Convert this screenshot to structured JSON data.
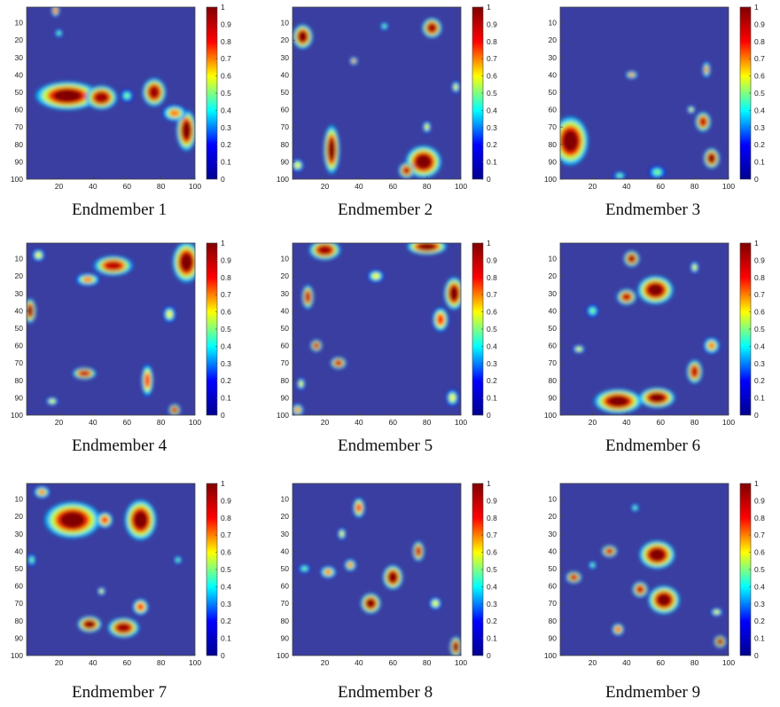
{
  "colormap": {
    "name": "jet",
    "stops": [
      "#00008f",
      "#0000ff",
      "#00ffff",
      "#ffff00",
      "#ff0000",
      "#800000"
    ],
    "background": "#3a3ea0"
  },
  "chart_data": [
    {
      "type": "heatmap",
      "caption": "Endmember 1",
      "xticks": [
        "20",
        "40",
        "60",
        "80",
        "100"
      ],
      "yticks": [
        "10",
        "20",
        "30",
        "40",
        "50",
        "60",
        "70",
        "80",
        "90",
        "100"
      ],
      "xlim": [
        1,
        100
      ],
      "ylim": [
        1,
        100
      ],
      "colorbar_ticks": [
        "0",
        "0.1",
        "0.2",
        "0.3",
        "0.4",
        "0.5",
        "0.6",
        "0.7",
        "0.8",
        "0.9",
        "1"
      ],
      "clim": [
        0,
        1
      ],
      "hotspots": [
        {
          "x": 25,
          "y": 52,
          "rx": 16,
          "ry": 7,
          "v": 1.0
        },
        {
          "x": 45,
          "y": 53,
          "rx": 8,
          "ry": 6,
          "v": 0.95
        },
        {
          "x": 76,
          "y": 50,
          "rx": 6,
          "ry": 7,
          "v": 0.95
        },
        {
          "x": 95,
          "y": 72,
          "rx": 5,
          "ry": 10,
          "v": 1.0
        },
        {
          "x": 88,
          "y": 62,
          "rx": 6,
          "ry": 4,
          "v": 0.7
        },
        {
          "x": 18,
          "y": 3,
          "rx": 2,
          "ry": 3,
          "v": 0.8
        },
        {
          "x": 20,
          "y": 16,
          "rx": 2,
          "ry": 2,
          "v": 0.5
        },
        {
          "x": 60,
          "y": 52,
          "rx": 3,
          "ry": 3,
          "v": 0.5
        }
      ]
    },
    {
      "type": "heatmap",
      "caption": "Endmember 2",
      "xticks": [
        "20",
        "40",
        "60",
        "80",
        "100"
      ],
      "yticks": [
        "10",
        "20",
        "30",
        "40",
        "50",
        "60",
        "70",
        "80",
        "90",
        "100"
      ],
      "xlim": [
        1,
        100
      ],
      "ylim": [
        1,
        100
      ],
      "colorbar_ticks": [
        "0",
        "0.1",
        "0.2",
        "0.3",
        "0.4",
        "0.5",
        "0.6",
        "0.7",
        "0.8",
        "0.9",
        "1"
      ],
      "clim": [
        0,
        1
      ],
      "hotspots": [
        {
          "x": 7,
          "y": 18,
          "rx": 5,
          "ry": 6,
          "v": 1.0
        },
        {
          "x": 83,
          "y": 13,
          "rx": 5,
          "ry": 5,
          "v": 0.95
        },
        {
          "x": 24,
          "y": 83,
          "rx": 4,
          "ry": 12,
          "v": 1.0
        },
        {
          "x": 78,
          "y": 90,
          "rx": 9,
          "ry": 8,
          "v": 1.0
        },
        {
          "x": 68,
          "y": 95,
          "rx": 4,
          "ry": 4,
          "v": 0.9
        },
        {
          "x": 37,
          "y": 32,
          "rx": 2,
          "ry": 2,
          "v": 0.7
        },
        {
          "x": 97,
          "y": 47,
          "rx": 2,
          "ry": 3,
          "v": 0.6
        },
        {
          "x": 55,
          "y": 12,
          "rx": 2,
          "ry": 2,
          "v": 0.5
        },
        {
          "x": 4,
          "y": 92,
          "rx": 3,
          "ry": 3,
          "v": 0.6
        },
        {
          "x": 80,
          "y": 70,
          "rx": 2,
          "ry": 3,
          "v": 0.6
        }
      ]
    },
    {
      "type": "heatmap",
      "caption": "Endmember 3",
      "xticks": [
        "20",
        "40",
        "60",
        "80",
        "100"
      ],
      "yticks": [
        "10",
        "20",
        "30",
        "40",
        "50",
        "60",
        "70",
        "80",
        "90",
        "100"
      ],
      "xlim": [
        1,
        100
      ],
      "ylim": [
        1,
        100
      ],
      "colorbar_ticks": [
        "0",
        "0.1",
        "0.2",
        "0.3",
        "0.4",
        "0.5",
        "0.6",
        "0.7",
        "0.8",
        "0.9",
        "1"
      ],
      "clim": [
        0,
        1
      ],
      "hotspots": [
        {
          "x": 7,
          "y": 78,
          "rx": 9,
          "ry": 12,
          "v": 1.0
        },
        {
          "x": 90,
          "y": 88,
          "rx": 4,
          "ry": 5,
          "v": 1.0
        },
        {
          "x": 85,
          "y": 67,
          "rx": 4,
          "ry": 5,
          "v": 0.9
        },
        {
          "x": 43,
          "y": 40,
          "rx": 3,
          "ry": 2,
          "v": 0.7
        },
        {
          "x": 87,
          "y": 37,
          "rx": 2,
          "ry": 4,
          "v": 0.7
        },
        {
          "x": 78,
          "y": 60,
          "rx": 2,
          "ry": 2,
          "v": 0.6
        },
        {
          "x": 58,
          "y": 96,
          "rx": 4,
          "ry": 3,
          "v": 0.5
        },
        {
          "x": 36,
          "y": 98,
          "rx": 3,
          "ry": 2,
          "v": 0.5
        }
      ]
    },
    {
      "type": "heatmap",
      "caption": "Endmember 4",
      "xticks": [
        "20",
        "40",
        "60",
        "80",
        "100"
      ],
      "yticks": [
        "10",
        "20",
        "30",
        "40",
        "50",
        "60",
        "70",
        "80",
        "90",
        "100"
      ],
      "xlim": [
        1,
        100
      ],
      "ylim": [
        1,
        100
      ],
      "colorbar_ticks": [
        "0",
        "0.1",
        "0.2",
        "0.3",
        "0.4",
        "0.5",
        "0.6",
        "0.7",
        "0.8",
        "0.9",
        "1"
      ],
      "clim": [
        0,
        1
      ],
      "hotspots": [
        {
          "x": 95,
          "y": 12,
          "rx": 7,
          "ry": 10,
          "v": 1.0
        },
        {
          "x": 52,
          "y": 14,
          "rx": 10,
          "ry": 5,
          "v": 0.9
        },
        {
          "x": 3,
          "y": 40,
          "rx": 3,
          "ry": 6,
          "v": 1.0
        },
        {
          "x": 37,
          "y": 22,
          "rx": 6,
          "ry": 3,
          "v": 0.7
        },
        {
          "x": 35,
          "y": 76,
          "rx": 6,
          "ry": 3,
          "v": 0.9
        },
        {
          "x": 72,
          "y": 80,
          "rx": 3,
          "ry": 8,
          "v": 0.8
        },
        {
          "x": 88,
          "y": 97,
          "rx": 3,
          "ry": 3,
          "v": 0.9
        },
        {
          "x": 8,
          "y": 8,
          "rx": 3,
          "ry": 3,
          "v": 0.6
        },
        {
          "x": 85,
          "y": 42,
          "rx": 3,
          "ry": 4,
          "v": 0.6
        },
        {
          "x": 16,
          "y": 92,
          "rx": 3,
          "ry": 2,
          "v": 0.6
        }
      ]
    },
    {
      "type": "heatmap",
      "caption": "Endmember 5",
      "xticks": [
        "20",
        "40",
        "60",
        "80",
        "100"
      ],
      "yticks": [
        "10",
        "20",
        "30",
        "40",
        "50",
        "60",
        "70",
        "80",
        "90",
        "100"
      ],
      "xlim": [
        1,
        100
      ],
      "ylim": [
        1,
        100
      ],
      "colorbar_ticks": [
        "0",
        "0.1",
        "0.2",
        "0.3",
        "0.4",
        "0.5",
        "0.6",
        "0.7",
        "0.8",
        "0.9",
        "1"
      ],
      "clim": [
        0,
        1
      ],
      "hotspots": [
        {
          "x": 80,
          "y": 3,
          "rx": 10,
          "ry": 4,
          "v": 1.0
        },
        {
          "x": 20,
          "y": 5,
          "rx": 8,
          "ry": 5,
          "v": 0.95
        },
        {
          "x": 96,
          "y": 30,
          "rx": 5,
          "ry": 8,
          "v": 1.0
        },
        {
          "x": 10,
          "y": 32,
          "rx": 3,
          "ry": 6,
          "v": 0.9
        },
        {
          "x": 88,
          "y": 45,
          "rx": 4,
          "ry": 6,
          "v": 0.8
        },
        {
          "x": 15,
          "y": 60,
          "rx": 3,
          "ry": 3,
          "v": 0.9
        },
        {
          "x": 28,
          "y": 70,
          "rx": 4,
          "ry": 3,
          "v": 0.9
        },
        {
          "x": 6,
          "y": 82,
          "rx": 2,
          "ry": 3,
          "v": 0.6
        },
        {
          "x": 4,
          "y": 97,
          "rx": 3,
          "ry": 3,
          "v": 0.7
        },
        {
          "x": 95,
          "y": 90,
          "rx": 3,
          "ry": 4,
          "v": 0.6
        },
        {
          "x": 50,
          "y": 20,
          "rx": 4,
          "ry": 3,
          "v": 0.6
        }
      ]
    },
    {
      "type": "heatmap",
      "caption": "Endmember 6",
      "xticks": [
        "20",
        "40",
        "60",
        "80",
        "100"
      ],
      "yticks": [
        "10",
        "20",
        "30",
        "40",
        "50",
        "60",
        "70",
        "80",
        "90",
        "100"
      ],
      "xlim": [
        1,
        100
      ],
      "ylim": [
        1,
        100
      ],
      "colorbar_ticks": [
        "0",
        "0.1",
        "0.2",
        "0.3",
        "0.4",
        "0.5",
        "0.6",
        "0.7",
        "0.8",
        "0.9",
        "1"
      ],
      "clim": [
        0,
        1
      ],
      "hotspots": [
        {
          "x": 43,
          "y": 10,
          "rx": 4,
          "ry": 4,
          "v": 0.95
        },
        {
          "x": 57,
          "y": 28,
          "rx": 9,
          "ry": 7,
          "v": 1.0
        },
        {
          "x": 40,
          "y": 32,
          "rx": 5,
          "ry": 4,
          "v": 0.9
        },
        {
          "x": 35,
          "y": 92,
          "rx": 12,
          "ry": 6,
          "v": 1.0
        },
        {
          "x": 58,
          "y": 90,
          "rx": 9,
          "ry": 5,
          "v": 1.0
        },
        {
          "x": 80,
          "y": 75,
          "rx": 4,
          "ry": 6,
          "v": 0.9
        },
        {
          "x": 90,
          "y": 60,
          "rx": 4,
          "ry": 4,
          "v": 0.7
        },
        {
          "x": 80,
          "y": 15,
          "rx": 2,
          "ry": 3,
          "v": 0.6
        },
        {
          "x": 12,
          "y": 62,
          "rx": 3,
          "ry": 2,
          "v": 0.6
        },
        {
          "x": 20,
          "y": 40,
          "rx": 3,
          "ry": 3,
          "v": 0.5
        }
      ]
    },
    {
      "type": "heatmap",
      "caption": "Endmember 7",
      "xticks": [
        "20",
        "40",
        "60",
        "80",
        "100"
      ],
      "yticks": [
        "10",
        "20",
        "30",
        "40",
        "50",
        "60",
        "70",
        "80",
        "90",
        "100"
      ],
      "xlim": [
        1,
        100
      ],
      "ylim": [
        1,
        100
      ],
      "colorbar_ticks": [
        "0",
        "0.1",
        "0.2",
        "0.3",
        "0.4",
        "0.5",
        "0.6",
        "0.7",
        "0.8",
        "0.9",
        "1"
      ],
      "clim": [
        0,
        1
      ],
      "hotspots": [
        {
          "x": 28,
          "y": 22,
          "rx": 14,
          "ry": 9,
          "v": 1.0
        },
        {
          "x": 68,
          "y": 22,
          "rx": 8,
          "ry": 10,
          "v": 1.0
        },
        {
          "x": 47,
          "y": 22,
          "rx": 4,
          "ry": 4,
          "v": 0.8
        },
        {
          "x": 38,
          "y": 82,
          "rx": 6,
          "ry": 4,
          "v": 1.0
        },
        {
          "x": 58,
          "y": 84,
          "rx": 8,
          "ry": 5,
          "v": 0.95
        },
        {
          "x": 68,
          "y": 72,
          "rx": 4,
          "ry": 4,
          "v": 0.8
        },
        {
          "x": 10,
          "y": 6,
          "rx": 4,
          "ry": 3,
          "v": 0.7
        },
        {
          "x": 4,
          "y": 45,
          "rx": 2,
          "ry": 3,
          "v": 0.5
        },
        {
          "x": 45,
          "y": 63,
          "rx": 2,
          "ry": 2,
          "v": 0.6
        },
        {
          "x": 90,
          "y": 45,
          "rx": 2,
          "ry": 2,
          "v": 0.5
        }
      ]
    },
    {
      "type": "heatmap",
      "caption": "Endmember 8",
      "xticks": [
        "20",
        "40",
        "60",
        "80",
        "100"
      ],
      "yticks": [
        "10",
        "20",
        "30",
        "40",
        "50",
        "60",
        "70",
        "80",
        "90",
        "100"
      ],
      "xlim": [
        1,
        100
      ],
      "ylim": [
        1,
        100
      ],
      "colorbar_ticks": [
        "0",
        "0.1",
        "0.2",
        "0.3",
        "0.4",
        "0.5",
        "0.6",
        "0.7",
        "0.8",
        "0.9",
        "1"
      ],
      "clim": [
        0,
        1
      ],
      "hotspots": [
        {
          "x": 47,
          "y": 70,
          "rx": 5,
          "ry": 5,
          "v": 1.0
        },
        {
          "x": 60,
          "y": 55,
          "rx": 5,
          "ry": 6,
          "v": 1.0
        },
        {
          "x": 75,
          "y": 40,
          "rx": 3,
          "ry": 5,
          "v": 0.9
        },
        {
          "x": 40,
          "y": 15,
          "rx": 3,
          "ry": 5,
          "v": 0.8
        },
        {
          "x": 22,
          "y": 52,
          "rx": 4,
          "ry": 3,
          "v": 0.7
        },
        {
          "x": 35,
          "y": 48,
          "rx": 3,
          "ry": 3,
          "v": 0.7
        },
        {
          "x": 97,
          "y": 95,
          "rx": 3,
          "ry": 5,
          "v": 1.0
        },
        {
          "x": 85,
          "y": 70,
          "rx": 3,
          "ry": 3,
          "v": 0.6
        },
        {
          "x": 8,
          "y": 50,
          "rx": 3,
          "ry": 2,
          "v": 0.5
        },
        {
          "x": 30,
          "y": 30,
          "rx": 2,
          "ry": 3,
          "v": 0.6
        }
      ]
    },
    {
      "type": "heatmap",
      "caption": "Endmember 9",
      "xticks": [
        "20",
        "40",
        "60",
        "80",
        "100"
      ],
      "yticks": [
        "10",
        "20",
        "30",
        "40",
        "50",
        "60",
        "70",
        "80",
        "90",
        "100"
      ],
      "xlim": [
        1,
        100
      ],
      "ylim": [
        1,
        100
      ],
      "colorbar_ticks": [
        "0",
        "0.1",
        "0.2",
        "0.3",
        "0.4",
        "0.5",
        "0.6",
        "0.7",
        "0.8",
        "0.9",
        "1"
      ],
      "clim": [
        0,
        1
      ],
      "hotspots": [
        {
          "x": 58,
          "y": 42,
          "rx": 9,
          "ry": 7,
          "v": 1.0
        },
        {
          "x": 62,
          "y": 68,
          "rx": 8,
          "ry": 7,
          "v": 1.0
        },
        {
          "x": 48,
          "y": 62,
          "rx": 4,
          "ry": 4,
          "v": 0.9
        },
        {
          "x": 30,
          "y": 40,
          "rx": 4,
          "ry": 3,
          "v": 0.9
        },
        {
          "x": 9,
          "y": 55,
          "rx": 4,
          "ry": 3,
          "v": 0.9
        },
        {
          "x": 35,
          "y": 85,
          "rx": 3,
          "ry": 3,
          "v": 0.8
        },
        {
          "x": 95,
          "y": 92,
          "rx": 3,
          "ry": 3,
          "v": 1.0
        },
        {
          "x": 93,
          "y": 75,
          "rx": 3,
          "ry": 2,
          "v": 0.6
        },
        {
          "x": 45,
          "y": 15,
          "rx": 2,
          "ry": 2,
          "v": 0.5
        },
        {
          "x": 20,
          "y": 48,
          "rx": 2,
          "ry": 2,
          "v": 0.5
        }
      ]
    }
  ]
}
